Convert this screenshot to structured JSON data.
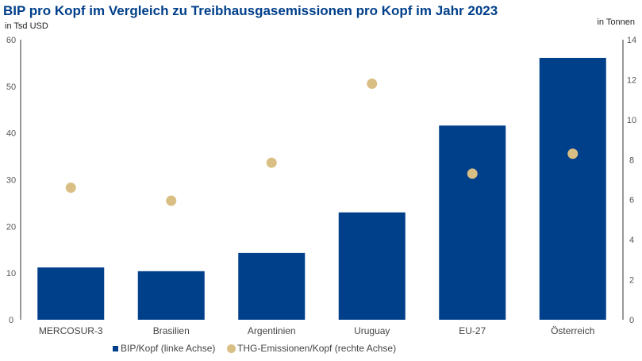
{
  "chart_data": {
    "type": "bar",
    "title": "BIP pro Kopf im Vergleich zu Treibhausgasemissionen pro Kopf im Jahr 2023",
    "ylabel": "in Tsd USD",
    "y2label": "in Tonnen",
    "xlabel": "",
    "categories": [
      "MERCOSUR-3",
      "Brasilien",
      "Argentinien",
      "Uruguay",
      "EU-27",
      "Österreich"
    ],
    "ylim": [
      0,
      60
    ],
    "y2lim": [
      0,
      14
    ],
    "yticks": [
      0,
      10,
      20,
      30,
      40,
      50,
      60
    ],
    "y2ticks": [
      0,
      2,
      4,
      6,
      8,
      10,
      12,
      14
    ],
    "grid": false,
    "legend_position": "bottom",
    "series": [
      {
        "name": "BIP/Kopf (linke Achse)",
        "type": "bar",
        "axis": "left",
        "color": "#003f8a",
        "values": [
          11.2,
          10.4,
          14.3,
          23.0,
          41.6,
          56.1
        ]
      },
      {
        "name": "THG-Emissionen/Kopf (rechte Achse)",
        "type": "scatter",
        "axis": "right",
        "color": "#d9bf84",
        "values": [
          6.6,
          5.95,
          7.85,
          11.8,
          7.3,
          8.3
        ]
      }
    ]
  }
}
